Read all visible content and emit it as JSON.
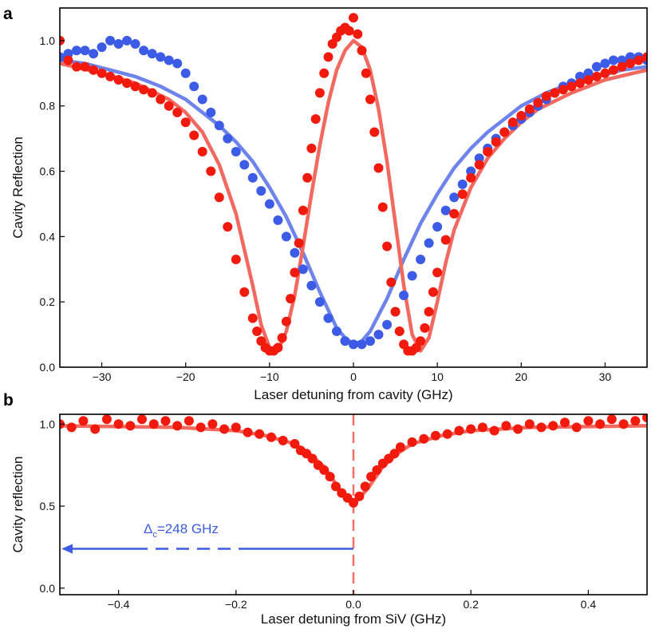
{
  "colors": {
    "red": "#f21a0c",
    "blue": "#3c5be6",
    "red_fit": "#f3685f",
    "blue_fit": "#6e84ec",
    "dash": "#ee7068"
  },
  "chart_data": [
    {
      "panel": "a",
      "type": "scatter",
      "xlabel": "Laser detuning from cavity (GHz)",
      "ylabel": "Cavity Reflection",
      "xlim": [
        -35,
        35
      ],
      "ylim": [
        0,
        1.1
      ],
      "xticks": [
        -30,
        -20,
        -10,
        0,
        10,
        20,
        30
      ],
      "yticks": [
        0.0,
        0.2,
        0.4,
        0.6,
        0.8,
        1.0
      ],
      "series": [
        {
          "name": "blue",
          "color": "#3c5be6",
          "kind": "points",
          "x": [
            -35,
            -34,
            -33,
            -32,
            -31,
            -30,
            -29,
            -28,
            -27,
            -26,
            -25,
            -24,
            -23,
            -22,
            -21,
            -20,
            -19,
            -18,
            -17,
            -16,
            -15,
            -14,
            -13,
            -12,
            -11,
            -10,
            -9,
            -8,
            -7,
            -6,
            -5,
            -4,
            -3,
            -2,
            -1,
            0,
            1,
            2,
            3,
            4,
            5,
            6,
            7,
            8,
            9,
            10,
            11,
            12,
            13,
            14,
            15,
            16,
            17,
            18,
            19,
            20,
            21,
            22,
            23,
            24,
            25,
            26,
            27,
            28,
            29,
            30,
            31,
            32,
            33,
            34,
            35
          ],
          "y": [
            0.95,
            0.96,
            0.97,
            0.97,
            0.96,
            0.98,
            1.0,
            0.99,
            1.0,
            0.99,
            0.97,
            0.96,
            0.95,
            0.94,
            0.93,
            0.9,
            0.86,
            0.82,
            0.78,
            0.74,
            0.7,
            0.66,
            0.62,
            0.58,
            0.54,
            0.5,
            0.45,
            0.4,
            0.35,
            0.3,
            0.25,
            0.2,
            0.15,
            0.11,
            0.08,
            0.07,
            0.07,
            0.08,
            0.1,
            0.13,
            0.17,
            0.22,
            0.28,
            0.33,
            0.38,
            0.43,
            0.48,
            0.52,
            0.56,
            0.6,
            0.64,
            0.67,
            0.7,
            0.72,
            0.74,
            0.76,
            0.78,
            0.8,
            0.82,
            0.84,
            0.86,
            0.87,
            0.89,
            0.9,
            0.92,
            0.93,
            0.94,
            0.94,
            0.95,
            0.95,
            0.94
          ]
        },
        {
          "name": "blue fit",
          "color": "#6e84ec",
          "kind": "line",
          "x": [
            -35,
            -32,
            -29,
            -26,
            -23,
            -20,
            -18,
            -16,
            -14,
            -12,
            -10,
            -8,
            -6,
            -4,
            -2,
            -1,
            0,
            1,
            2,
            4,
            6,
            8,
            10,
            12,
            14,
            16,
            18,
            20,
            23,
            26,
            29,
            32,
            35
          ],
          "y": [
            0.94,
            0.93,
            0.91,
            0.89,
            0.86,
            0.82,
            0.78,
            0.74,
            0.69,
            0.63,
            0.55,
            0.46,
            0.35,
            0.23,
            0.12,
            0.09,
            0.07,
            0.08,
            0.11,
            0.21,
            0.33,
            0.44,
            0.53,
            0.61,
            0.67,
            0.72,
            0.76,
            0.8,
            0.84,
            0.87,
            0.89,
            0.91,
            0.92
          ]
        },
        {
          "name": "red",
          "color": "#f21a0c",
          "kind": "points",
          "x": [
            -35,
            -34,
            -33,
            -32,
            -31,
            -30,
            -29,
            -28,
            -27,
            -26,
            -25,
            -24,
            -23,
            -22,
            -21,
            -20,
            -19,
            -18,
            -17,
            -16,
            -15,
            -14,
            -13,
            -12,
            -11.5,
            -11,
            -10.5,
            -10,
            -9.5,
            -9,
            -8.5,
            -8,
            -7.5,
            -7,
            -6.5,
            -6,
            -5.5,
            -5,
            -4.5,
            -4,
            -3.5,
            -3,
            -2.5,
            -2,
            -1.5,
            -1,
            -0.5,
            0,
            0.5,
            1,
            1.5,
            2,
            2.5,
            3,
            3.5,
            4,
            4.5,
            5,
            5.5,
            6,
            6.5,
            7,
            7.5,
            8,
            8.5,
            9,
            9.5,
            10,
            11,
            12,
            13,
            14,
            15,
            16,
            17,
            18,
            19,
            20,
            21,
            22,
            23,
            24,
            25,
            26,
            27,
            28,
            29,
            30,
            31,
            32,
            33,
            34,
            35
          ],
          "y": [
            1.0,
            0.94,
            0.92,
            0.92,
            0.91,
            0.9,
            0.89,
            0.88,
            0.87,
            0.86,
            0.85,
            0.84,
            0.82,
            0.8,
            0.78,
            0.75,
            0.71,
            0.66,
            0.6,
            0.52,
            0.43,
            0.33,
            0.23,
            0.15,
            0.11,
            0.08,
            0.06,
            0.05,
            0.05,
            0.06,
            0.09,
            0.14,
            0.21,
            0.29,
            0.38,
            0.48,
            0.58,
            0.67,
            0.76,
            0.84,
            0.9,
            0.95,
            0.99,
            1.01,
            1.03,
            1.04,
            1.03,
            1.07,
            1.02,
            0.97,
            0.9,
            0.82,
            0.72,
            0.61,
            0.49,
            0.37,
            0.26,
            0.17,
            0.11,
            0.07,
            0.05,
            0.05,
            0.06,
            0.08,
            0.12,
            0.17,
            0.23,
            0.29,
            0.39,
            0.47,
            0.53,
            0.58,
            0.62,
            0.66,
            0.69,
            0.72,
            0.75,
            0.77,
            0.79,
            0.81,
            0.83,
            0.84,
            0.85,
            0.86,
            0.87,
            0.88,
            0.89,
            0.9,
            0.91,
            0.92,
            0.93,
            0.94,
            0.95
          ]
        },
        {
          "name": "red fit",
          "color": "#f3685f",
          "kind": "line",
          "x": [
            -35,
            -30,
            -26,
            -22,
            -20,
            -18,
            -16,
            -14,
            -12,
            -11,
            -10,
            -9,
            -8,
            -7,
            -6,
            -5,
            -4,
            -3,
            -2,
            -1,
            0,
            1,
            2,
            3,
            4,
            5,
            6,
            7,
            8,
            9,
            10,
            11,
            12,
            14,
            16,
            18,
            20,
            22,
            26,
            30,
            35
          ],
          "y": [
            0.93,
            0.9,
            0.87,
            0.82,
            0.78,
            0.72,
            0.62,
            0.47,
            0.25,
            0.13,
            0.06,
            0.05,
            0.11,
            0.22,
            0.37,
            0.53,
            0.68,
            0.81,
            0.91,
            0.97,
            1.0,
            0.98,
            0.91,
            0.79,
            0.63,
            0.44,
            0.25,
            0.1,
            0.05,
            0.09,
            0.2,
            0.32,
            0.42,
            0.55,
            0.64,
            0.7,
            0.75,
            0.79,
            0.84,
            0.88,
            0.91
          ]
        }
      ]
    },
    {
      "panel": "b",
      "type": "scatter",
      "xlabel": "Laser detuning from SiV (GHz)",
      "ylabel": "Cavity reflection",
      "xlim": [
        -0.5,
        0.5
      ],
      "ylim": [
        -0.04,
        1.06
      ],
      "xticks": [
        -0.4,
        -0.2,
        0.0,
        0.2,
        0.4
      ],
      "yticks": [
        0.0,
        0.5,
        1.0
      ],
      "annotation": {
        "label_symbol": "Δ",
        "label_sub": "c",
        "label_text": "=248 GHz",
        "color": "#3c5be6",
        "y": 0.24,
        "x_from": 0.0,
        "x_to": -0.5
      },
      "vline": {
        "x": 0.0,
        "color": "#ee7068"
      },
      "series": [
        {
          "name": "red",
          "color": "#f21a0c",
          "kind": "points",
          "x": [
            -0.5,
            -0.48,
            -0.46,
            -0.44,
            -0.42,
            -0.4,
            -0.38,
            -0.36,
            -0.34,
            -0.32,
            -0.3,
            -0.28,
            -0.26,
            -0.24,
            -0.22,
            -0.2,
            -0.18,
            -0.16,
            -0.14,
            -0.12,
            -0.1,
            -0.09,
            -0.08,
            -0.07,
            -0.06,
            -0.05,
            -0.04,
            -0.03,
            -0.02,
            -0.01,
            0.0,
            0.01,
            0.02,
            0.03,
            0.04,
            0.05,
            0.06,
            0.07,
            0.08,
            0.1,
            0.12,
            0.14,
            0.16,
            0.18,
            0.2,
            0.22,
            0.24,
            0.26,
            0.28,
            0.3,
            0.32,
            0.34,
            0.36,
            0.38,
            0.4,
            0.42,
            0.44,
            0.46,
            0.48,
            0.5
          ],
          "y": [
            1.0,
            0.98,
            1.02,
            0.97,
            1.03,
            1.0,
            0.99,
            1.03,
            1.0,
            1.02,
            0.99,
            1.02,
            0.98,
            1.0,
            0.97,
            0.98,
            0.95,
            0.94,
            0.92,
            0.9,
            0.88,
            0.84,
            0.82,
            0.79,
            0.75,
            0.72,
            0.68,
            0.62,
            0.58,
            0.55,
            0.52,
            0.56,
            0.62,
            0.68,
            0.72,
            0.76,
            0.79,
            0.82,
            0.86,
            0.89,
            0.91,
            0.93,
            0.94,
            0.96,
            0.97,
            0.98,
            0.96,
            0.99,
            0.97,
            1.0,
            0.98,
            0.99,
            1.01,
            0.98,
            1.02,
            1.0,
            1.03,
            1.0,
            1.02,
            1.04
          ]
        },
        {
          "name": "red fit",
          "color": "#f3685f",
          "kind": "line",
          "x": [
            -0.5,
            -0.4,
            -0.3,
            -0.2,
            -0.15,
            -0.1,
            -0.075,
            -0.05,
            -0.025,
            0.0,
            0.025,
            0.05,
            0.075,
            0.1,
            0.15,
            0.2,
            0.3,
            0.4,
            0.5
          ],
          "y": [
            0.99,
            0.985,
            0.98,
            0.96,
            0.93,
            0.88,
            0.82,
            0.74,
            0.61,
            0.51,
            0.61,
            0.74,
            0.82,
            0.88,
            0.93,
            0.96,
            0.98,
            0.985,
            0.99
          ]
        }
      ]
    }
  ]
}
